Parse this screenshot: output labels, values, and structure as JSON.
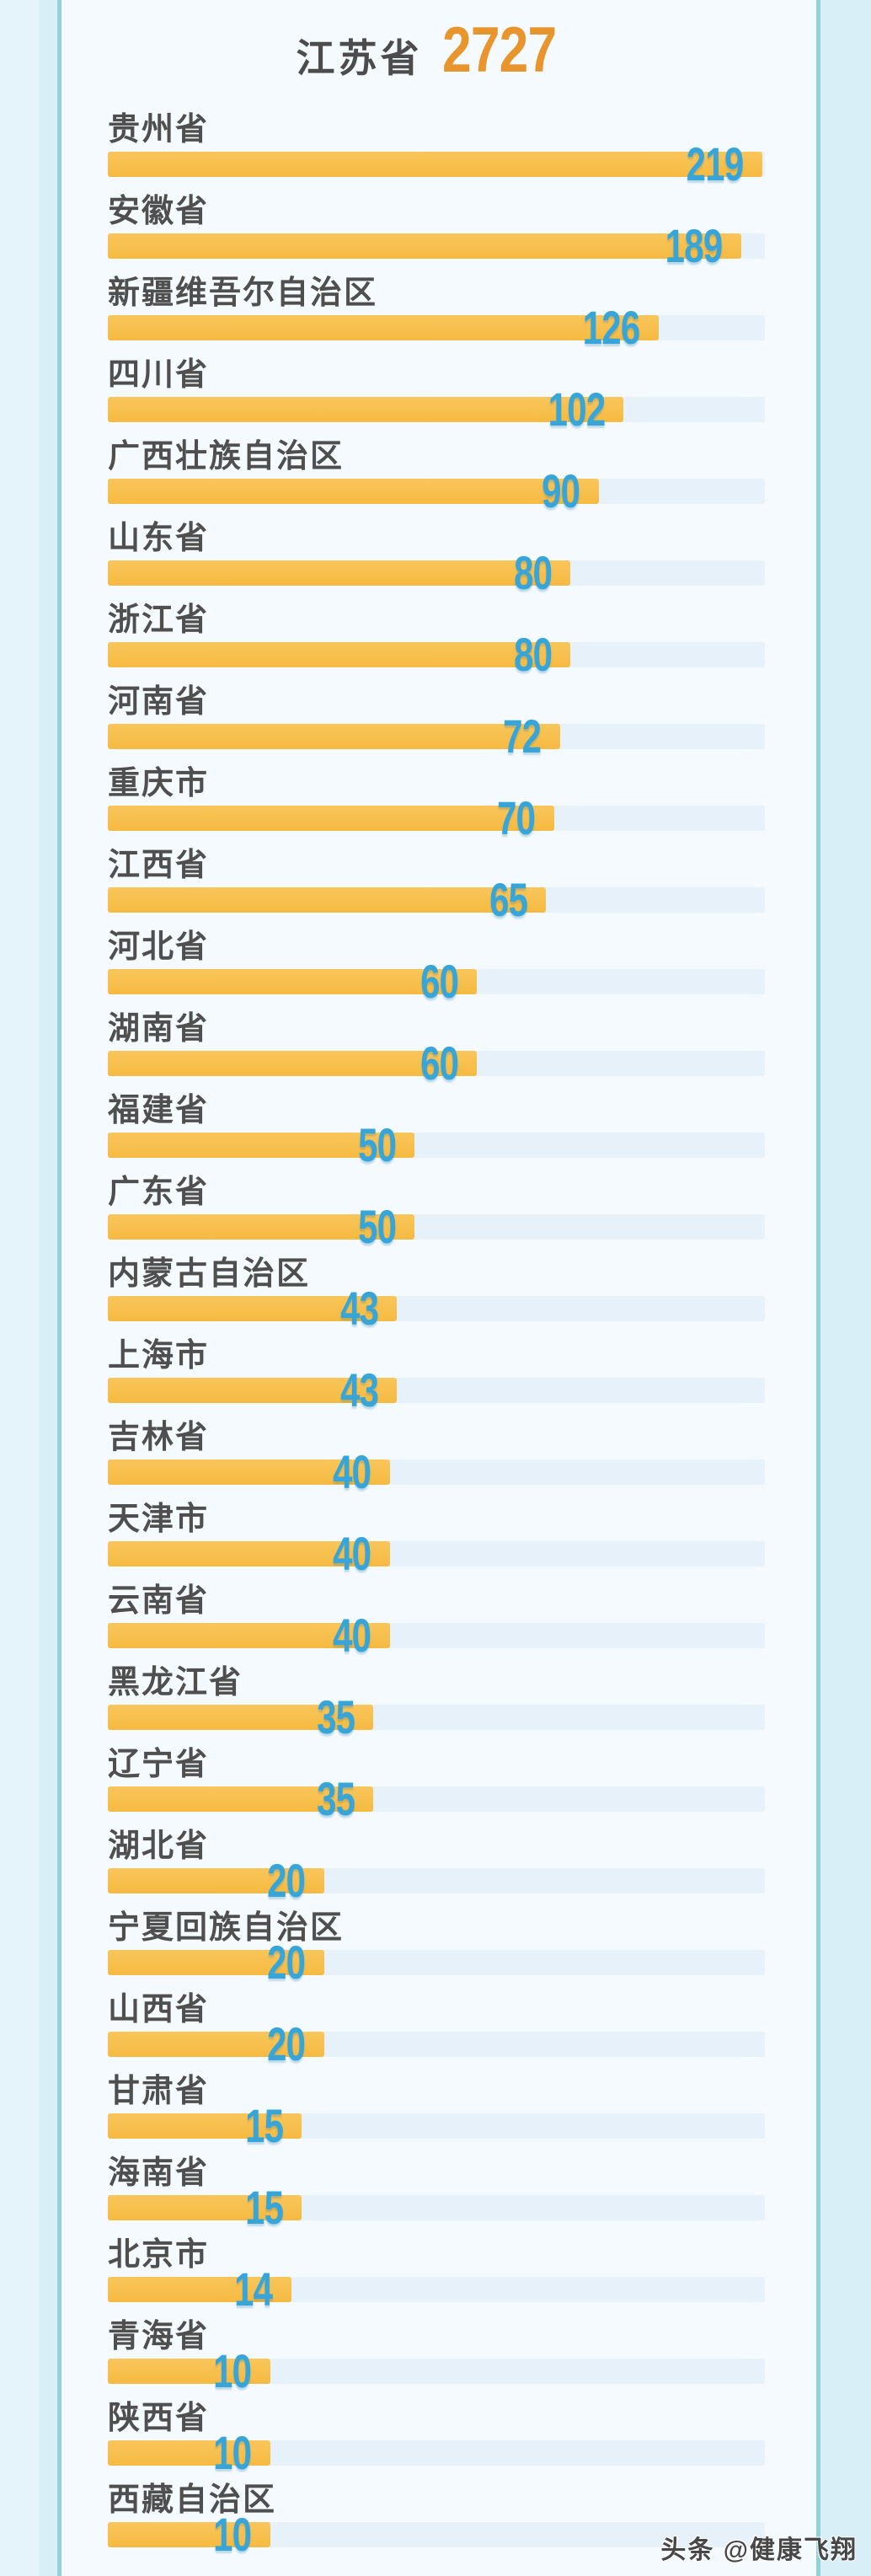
{
  "page": {
    "watermark": "头条 @健康飞翔"
  },
  "chart_data": {
    "type": "bar",
    "orientation": "horizontal",
    "title": "江苏省 2727",
    "header_item": {
      "label": "江苏省",
      "value": 2727
    },
    "categories": [
      "贵州省",
      "安徽省",
      "新疆维吾尔自治区",
      "四川省",
      "广西壮族自治区",
      "山东省",
      "浙江省",
      "河南省",
      "重庆市",
      "江西省",
      "河北省",
      "湖南省",
      "福建省",
      "广东省",
      "内蒙古自治区",
      "上海市",
      "吉林省",
      "天津市",
      "云南省",
      "黑龙江省",
      "辽宁省",
      "湖北省",
      "宁夏回族自治区",
      "山西省",
      "甘肃省",
      "海南省",
      "北京市",
      "青海省",
      "陕西省",
      "西藏自治区"
    ],
    "values": [
      219,
      189,
      126,
      102,
      90,
      80,
      80,
      72,
      70,
      65,
      60,
      60,
      50,
      50,
      43,
      43,
      40,
      40,
      40,
      35,
      35,
      20,
      20,
      20,
      15,
      15,
      14,
      10,
      10,
      10
    ],
    "bar_length_pct": [
      99.6,
      96.4,
      83.8,
      78.5,
      74.7,
      70.4,
      70.4,
      68.8,
      67.9,
      66.7,
      56.2,
      56.2,
      46.7,
      46.7,
      44.0,
      44.0,
      42.9,
      42.9,
      42.9,
      40.4,
      40.4,
      32.9,
      32.9,
      32.9,
      29.5,
      29.5,
      27.9,
      24.7,
      24.7,
      24.7
    ],
    "value_labels_shown": true,
    "axes_shown": false,
    "legend": "none",
    "colors": {
      "bar": "#F7C04B",
      "track": "#E6F1F9",
      "value_text": "#38A5D8",
      "label_text": "#4F4F4F",
      "title_accent": "#E8952E",
      "card_bg": "#F4FAFD",
      "page_bg": "#D8EFF8",
      "border": "#93D2DC"
    }
  }
}
